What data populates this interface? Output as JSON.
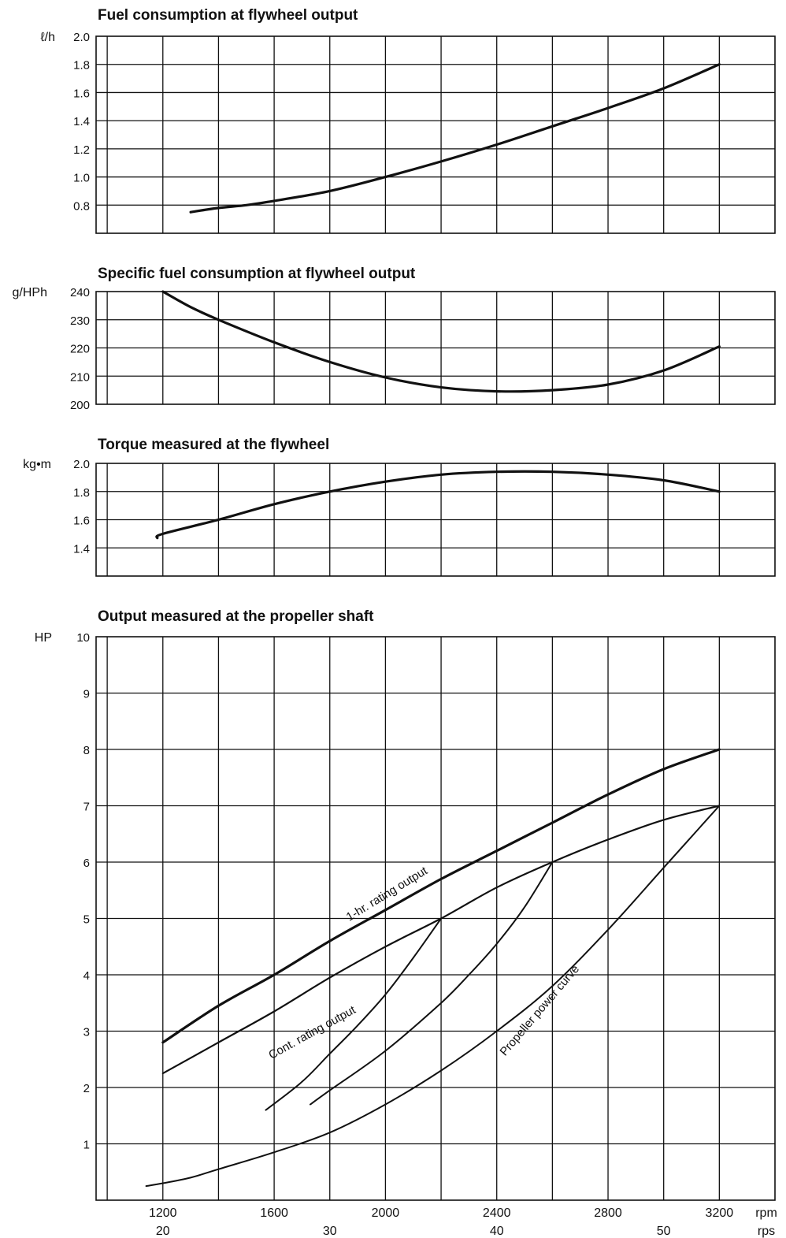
{
  "x_axis": {
    "rpm_ticks": [
      1200,
      1600,
      2000,
      2400,
      2800,
      3200
    ],
    "rpm_unit": "rpm",
    "rps_ticks": [
      20,
      30,
      40,
      50
    ],
    "rps_unit": "rps",
    "range": [
      960,
      3400
    ],
    "minor_gridlines": [
      1000,
      1200,
      1400,
      1600,
      1800,
      2000,
      2200,
      2400,
      2600,
      2800,
      3000,
      3200,
      3400
    ]
  },
  "chart_data": [
    {
      "type": "line",
      "title": "Fuel consumption at flywheel output",
      "ylabel": "ℓ/h",
      "ylim": [
        0.6,
        2.0
      ],
      "yticks": [
        "2.0",
        "1.8",
        "1.6",
        "1.4",
        "1.2",
        "1.0",
        "0.8"
      ],
      "grid": true,
      "series": [
        {
          "x": [
            1300,
            1400,
            1500,
            1600,
            1800,
            2000,
            2200,
            2400,
            2600,
            2800,
            3000,
            3200
          ],
          "values": [
            0.75,
            0.78,
            0.8,
            0.83,
            0.9,
            1.0,
            1.11,
            1.23,
            1.36,
            1.49,
            1.63,
            1.8
          ]
        }
      ]
    },
    {
      "type": "line",
      "title": "Specific fuel consumption at flywheel output",
      "ylabel": "g/HPh",
      "ylim": [
        200,
        240
      ],
      "yticks": [
        "240",
        "230",
        "220",
        "210",
        "200"
      ],
      "grid": true,
      "series": [
        {
          "x": [
            1200,
            1300,
            1400,
            1600,
            1800,
            2000,
            2200,
            2400,
            2600,
            2800,
            3000,
            3200
          ],
          "values": [
            240,
            234.5,
            230,
            222,
            215,
            209.5,
            206,
            204.6,
            205,
            207,
            212,
            220.5
          ]
        }
      ]
    },
    {
      "type": "line",
      "title": "Torque measured at the flywheel",
      "ylabel": "kg•m",
      "ylim": [
        1.2,
        2.0
      ],
      "yticks": [
        "2.0",
        "1.8",
        "1.6",
        "1.4"
      ],
      "grid": true,
      "series": [
        {
          "x": [
            1180,
            1200,
            1400,
            1600,
            1800,
            2000,
            2200,
            2400,
            2600,
            2800,
            3000,
            3200
          ],
          "values": [
            1.47,
            1.5,
            1.6,
            1.71,
            1.8,
            1.87,
            1.92,
            1.94,
            1.94,
            1.92,
            1.88,
            1.8
          ]
        }
      ]
    },
    {
      "type": "line",
      "title": "Output measured at the propeller shaft",
      "ylabel": "HP",
      "ylim": [
        0,
        10
      ],
      "yticks": [
        "10",
        "9",
        "8",
        "7",
        "6",
        "5",
        "4",
        "3",
        "2",
        "1"
      ],
      "grid": true,
      "series": [
        {
          "x": [
            1200,
            1400,
            1600,
            1800,
            2000,
            2200,
            2400,
            2600,
            2800,
            3000,
            3200
          ],
          "values": [
            2.8,
            3.45,
            4.0,
            4.6,
            5.15,
            5.7,
            6.2,
            6.7,
            7.2,
            7.65,
            8.0
          ]
        },
        {
          "x": [
            1200,
            1400,
            1600,
            1800,
            2000,
            2200,
            2400,
            2600,
            2800,
            3000,
            3200
          ],
          "values": [
            2.25,
            2.8,
            3.35,
            3.95,
            4.5,
            5.0,
            5.55,
            6.0,
            6.4,
            6.75,
            7.0
          ]
        },
        {
          "x": [
            1140,
            1200,
            1300,
            1400,
            1600,
            1800,
            2000,
            2200,
            2400,
            2600,
            2800,
            3000,
            3200
          ],
          "values": [
            0.25,
            0.3,
            0.4,
            0.55,
            0.85,
            1.2,
            1.7,
            2.3,
            3.0,
            3.8,
            4.8,
            5.9,
            7.0
          ]
        },
        {
          "x": [
            1570,
            1700,
            1800,
            1900,
            2000,
            2100,
            2200
          ],
          "values": [
            1.6,
            2.1,
            2.6,
            3.1,
            3.65,
            4.3,
            5.0
          ]
        },
        {
          "x": [
            1730,
            1800,
            2000,
            2200,
            2300,
            2400,
            2500,
            2600
          ],
          "values": [
            1.7,
            1.95,
            2.65,
            3.5,
            4.0,
            4.55,
            5.2,
            6.0
          ]
        }
      ],
      "annotations": [
        {
          "text": "1-hr. rating output",
          "x": 1870,
          "y": 4.95,
          "angle": -31.5
        },
        {
          "text": "Cont. rating output",
          "x": 1590,
          "y": 2.5,
          "angle": -29
        },
        {
          "text": "Propeller power curve",
          "x": 2430,
          "y": 2.55,
          "angle": -49.5
        }
      ]
    }
  ]
}
